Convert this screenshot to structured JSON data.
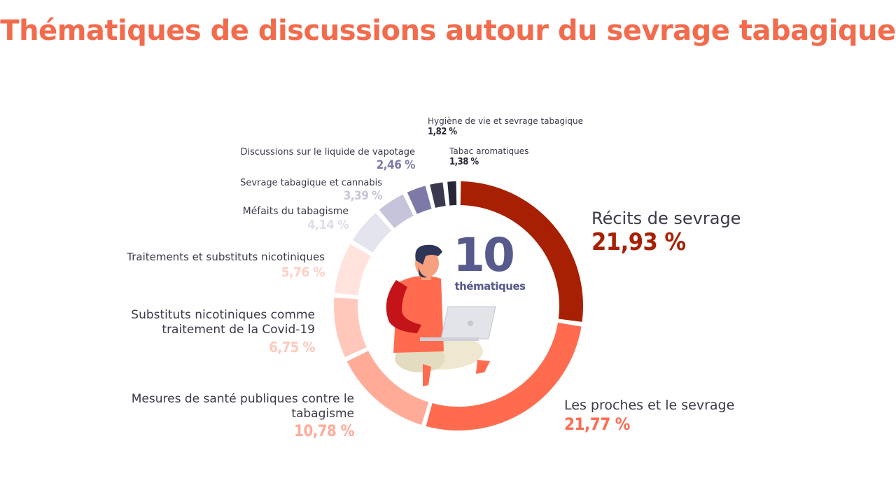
{
  "page": {
    "title": "Thématiques de discussions autour du sevrage tabagique"
  },
  "center": {
    "number": "10",
    "label": "thématiques",
    "illustration": "person-with-laptop-illustration"
  },
  "colors": {
    "title": "#f26b4c",
    "center_text": "#565a8c"
  },
  "chart_data": {
    "type": "donut",
    "title": "Thématiques de discussions autour du sevrage tabagique",
    "unit": "%",
    "series": [
      {
        "name": "Récits de sevrage",
        "value": 21.93,
        "label": "21,93 %",
        "color": "#a82003"
      },
      {
        "name": "Les proches et le sevrage",
        "value": 21.77,
        "label": "21,77 %",
        "color": "#ff6b4f"
      },
      {
        "name": "Mesures de santé publiques contre le tabagisme",
        "value": 10.78,
        "label": "10,78 %",
        "color": "#ffab98"
      },
      {
        "name": "Substituts nicotiniques comme traitement de la Covid-19",
        "value": 6.75,
        "label": "6,75 %",
        "color": "#ffc8bb"
      },
      {
        "name": "Traitements et substituts nicotiniques",
        "value": 5.76,
        "label": "5,76 %",
        "color": "#ffe3dc"
      },
      {
        "name": "Méfaits du tabagisme",
        "value": 4.14,
        "label": "4,14 %",
        "color": "#e4e4ee"
      },
      {
        "name": "Sevrage tabagique et cannabis",
        "value": 3.39,
        "label": "3,39 %",
        "color": "#c5c4da"
      },
      {
        "name": "Discussions sur le liquide de vapotage",
        "value": 2.46,
        "label": "2,46 %",
        "color": "#7d7aa8"
      },
      {
        "name": "Hygiène de vie et sevrage tabagique",
        "value": 1.82,
        "label": "1,82 %",
        "color": "#3b3950"
      },
      {
        "name": "Tabac aromatiques",
        "value": 1.38,
        "label": "1,38 %",
        "color": "#262637"
      }
    ]
  }
}
